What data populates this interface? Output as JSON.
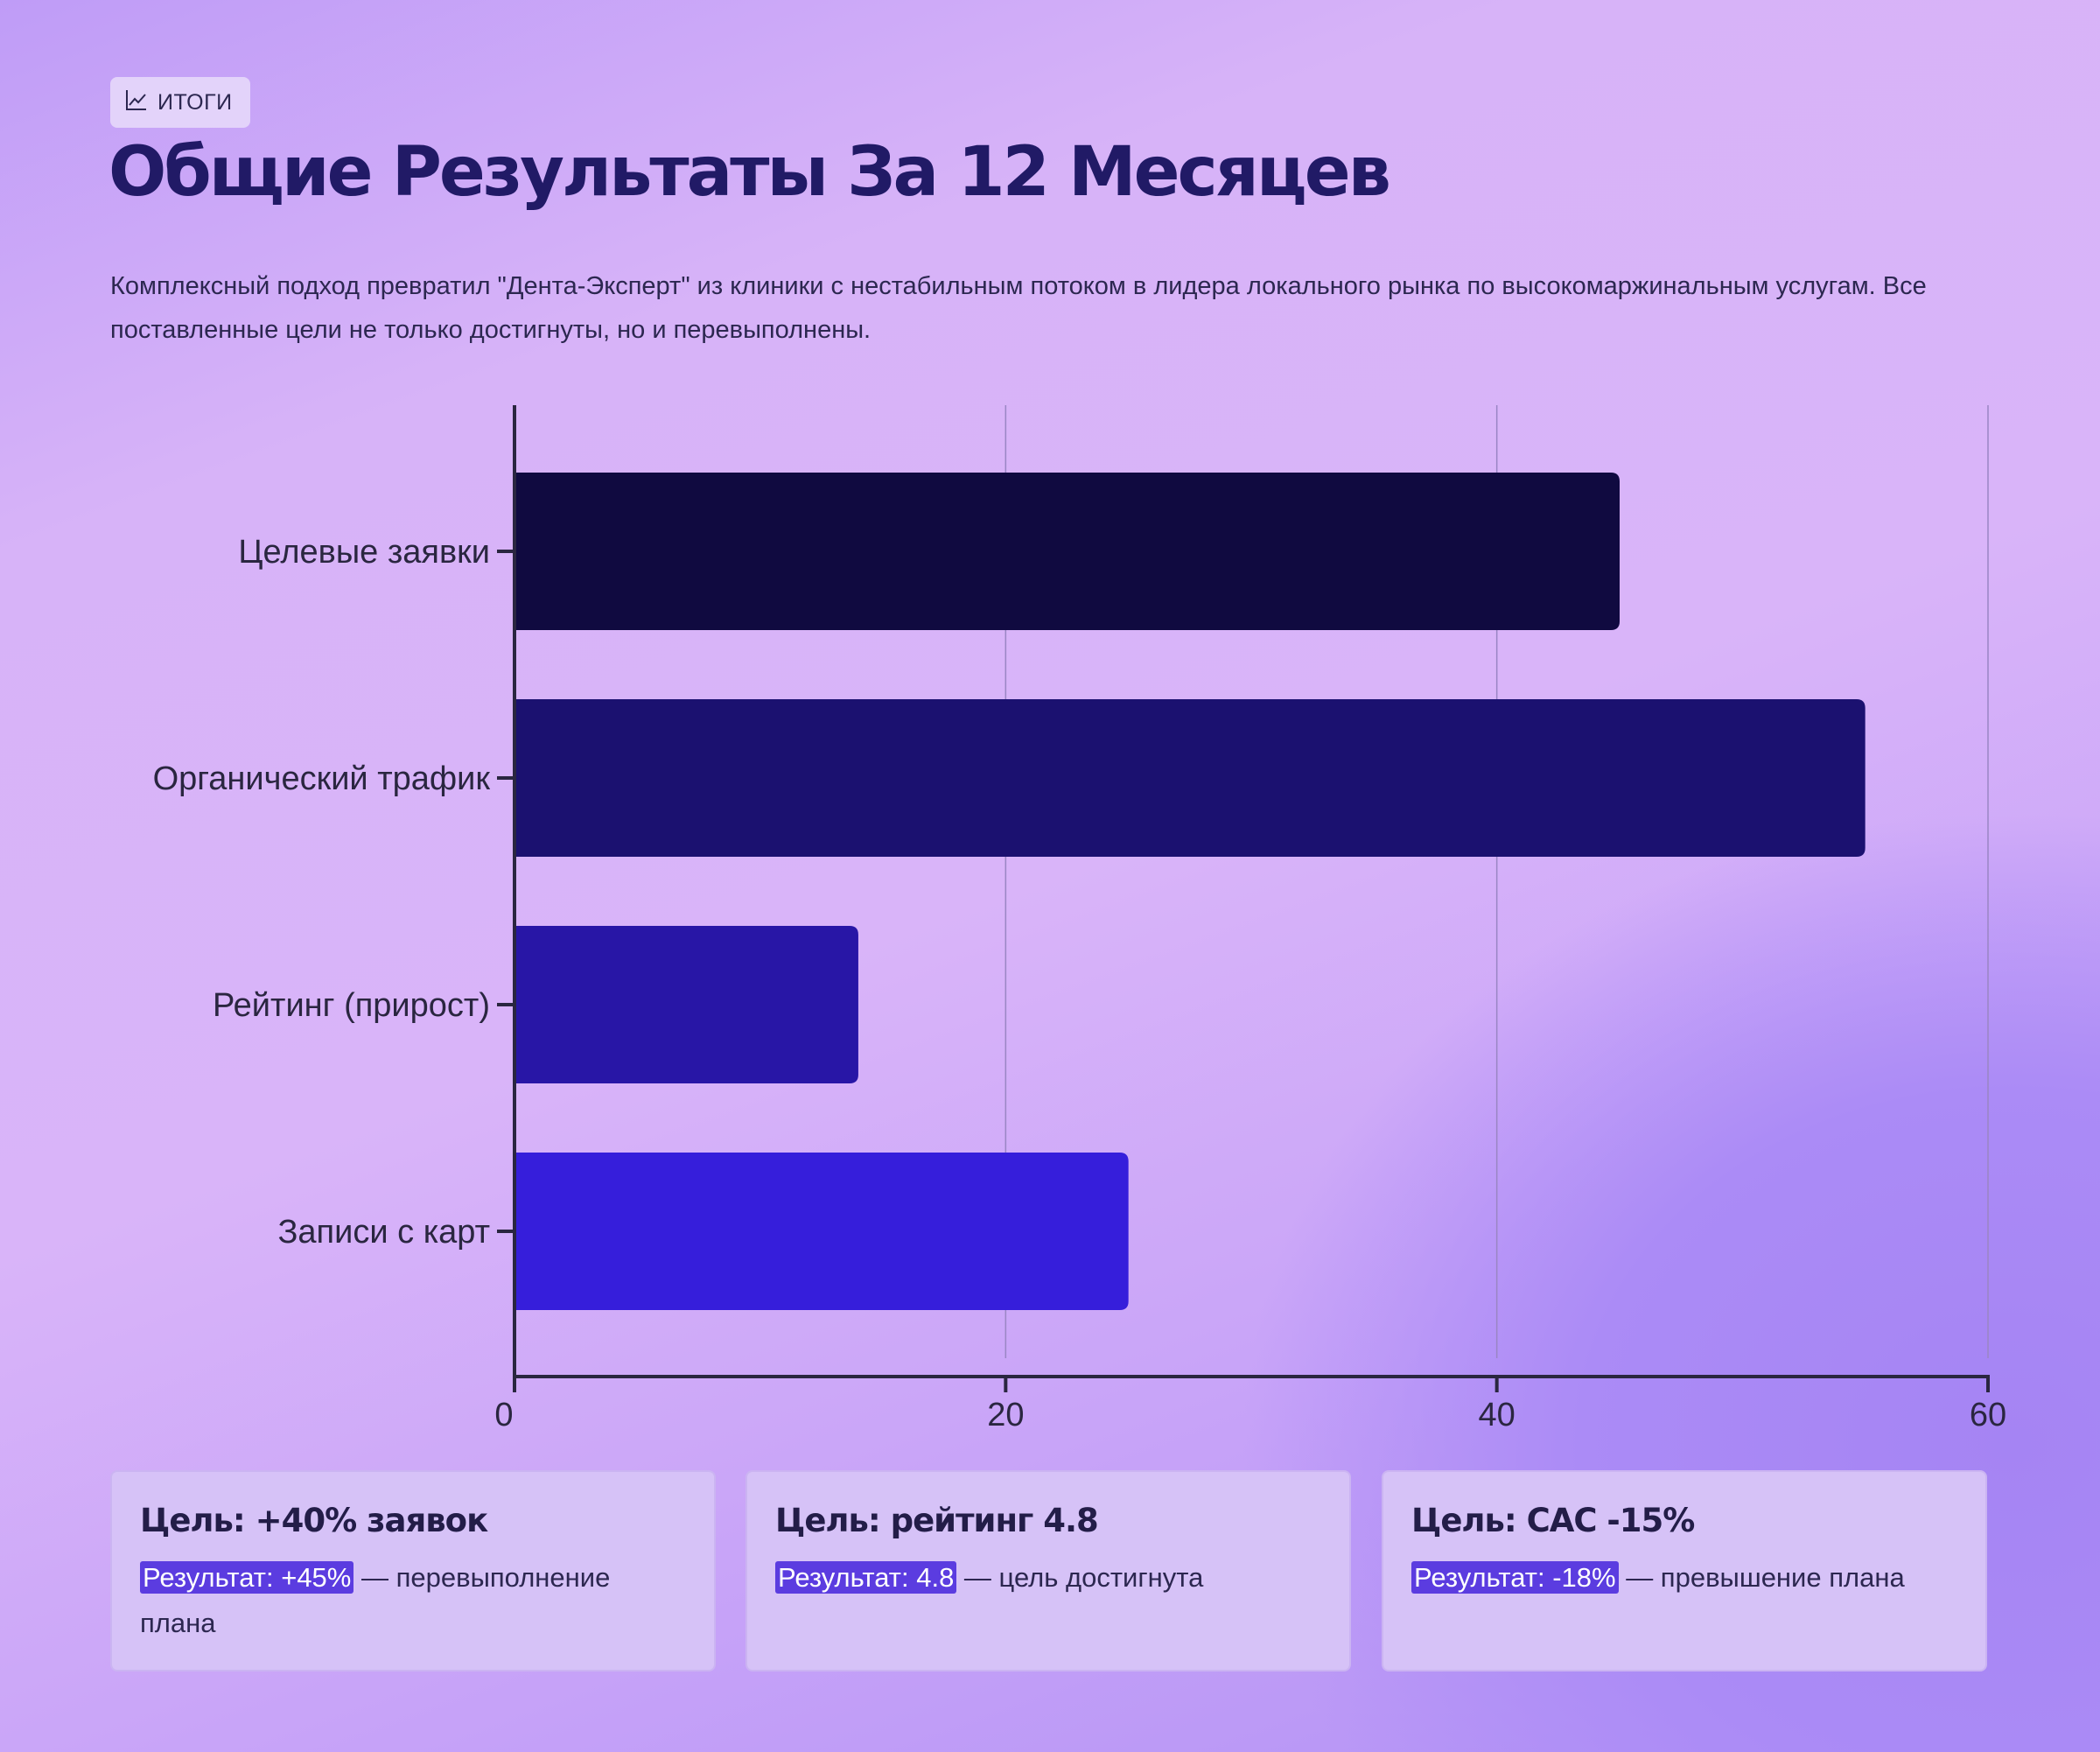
{
  "header": {
    "badge_label": "ИТОГИ",
    "badge_icon": "trend-chart-icon",
    "title": "Общие Результаты За 12 Месяцев",
    "subtitle": "Комплексный подход превратил \"Дента-Эксперт\" из клиники с нестабильным потоком в лидера локального рынка по высокомаржинальным услугам. Все поставленные цели не только достигнуты, но и перевыполнены."
  },
  "chart_data": {
    "type": "bar",
    "orientation": "horizontal",
    "categories": [
      "Целевые заявки",
      "Органический трафик",
      "Рейтинг (прирост)",
      "Записи с карт"
    ],
    "values": [
      45,
      55,
      14,
      25
    ],
    "colors": [
      "#100a40",
      "#1b1170",
      "#2816a6",
      "#361edb"
    ],
    "xlim": [
      0,
      60
    ],
    "xticks": [
      0,
      20,
      40,
      60
    ],
    "grid": true,
    "title": "",
    "xlabel": "",
    "ylabel": ""
  },
  "cards": [
    {
      "title": "Цель: +40% заявок",
      "result": "Результат: +45%",
      "note": " — перевыполнение плана"
    },
    {
      "title": "Цель: рейтинг 4.8",
      "result": "Результат: 4.8",
      "note": " — цель достигнута"
    },
    {
      "title": "Цель: CAC -15%",
      "result": "Результат: -18%",
      "note": " — превышение плана"
    }
  ]
}
